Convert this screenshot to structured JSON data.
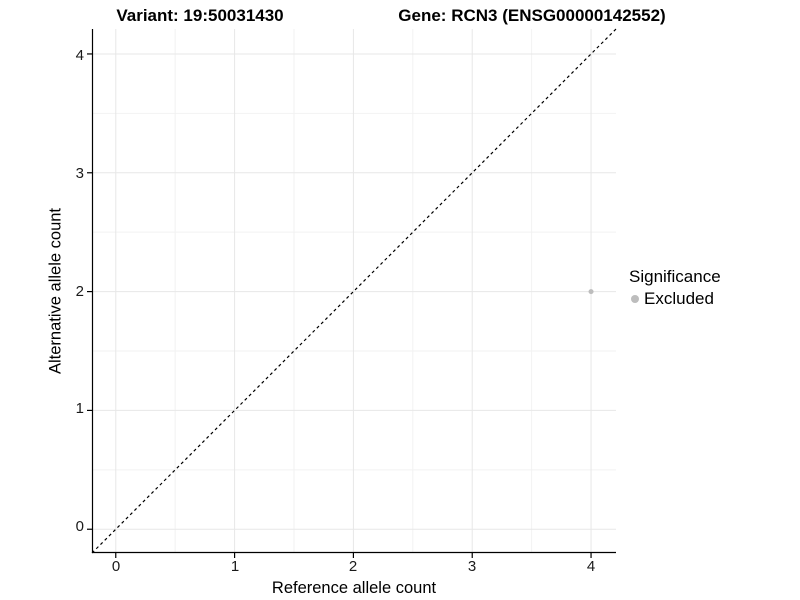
{
  "header": {
    "variant_title": "Variant: 19:50031430",
    "gene_title": "Gene: RCN3 (ENSG00000142552)"
  },
  "legend": {
    "title": "Significance",
    "items": [
      {
        "label": "Excluded",
        "color": "#bdbdbd"
      }
    ]
  },
  "chart_data": {
    "type": "scatter",
    "titles": {
      "left": "Variant: 19:50031430",
      "right": "Gene: RCN3 (ENSG00000142552)"
    },
    "xlabel": "Reference allele count",
    "ylabel": "Alternative allele count",
    "x_ticks": [
      0,
      1,
      2,
      3,
      4
    ],
    "y_ticks": [
      0,
      1,
      2,
      3,
      4
    ],
    "x_tick_labels": [
      "0",
      "1",
      "2",
      "3",
      "4"
    ],
    "y_tick_labels": [
      "0",
      "1",
      "2",
      "3",
      "4"
    ],
    "xlim": [
      -0.2,
      4.21
    ],
    "ylim": [
      -0.2,
      4.21
    ],
    "grid": {
      "major": true,
      "minor": true
    },
    "identity_line": {
      "shown": true,
      "style": "dashed",
      "color": "#000000"
    },
    "series": [
      {
        "name": "Excluded",
        "color": "#bdbdbd",
        "points": [
          {
            "x": 4,
            "y": 2
          }
        ]
      }
    ],
    "legend_position": "right",
    "legend_title": "Significance"
  },
  "colors": {
    "background": "#ffffff",
    "axis": "#000000",
    "grid_major": "#e7e7e7",
    "grid_minor": "#f2f2f2",
    "tick_text": "#1a1a1a",
    "point": "#bdbdbd"
  }
}
